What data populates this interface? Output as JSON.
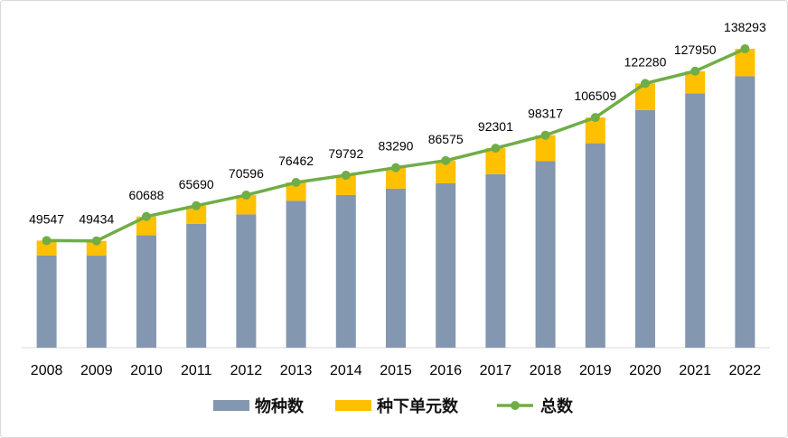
{
  "chart_data": {
    "type": "bar",
    "stacked": true,
    "categories": [
      "2008",
      "2009",
      "2010",
      "2011",
      "2012",
      "2013",
      "2014",
      "2015",
      "2016",
      "2017",
      "2018",
      "2019",
      "2020",
      "2021",
      "2022"
    ],
    "series": [
      {
        "name": "物种数",
        "kind": "bar",
        "color": "#8497B0",
        "values": [
          42700,
          42600,
          52000,
          57300,
          61700,
          68000,
          70700,
          73600,
          76100,
          80300,
          86300,
          94600,
          110000,
          117700,
          125600
        ]
      },
      {
        "name": "种下单元数",
        "kind": "bar",
        "color": "#FFC000",
        "values": [
          6847,
          6834,
          8688,
          8390,
          8896,
          8462,
          9092,
          9690,
          10475,
          12001,
          12017,
          11909,
          12280,
          10250,
          12693
        ]
      },
      {
        "name": "总数",
        "kind": "line",
        "color": "#70AD47",
        "values": [
          49547,
          49434,
          60688,
          65690,
          70596,
          76462,
          79792,
          83290,
          86575,
          92301,
          98317,
          106509,
          122280,
          127950,
          138293
        ]
      }
    ],
    "data_labels": [
      "49547",
      "49434",
      "60688",
      "65690",
      "70596",
      "76462",
      "79792",
      "83290",
      "86575",
      "92301",
      "98317",
      "106509",
      "122280",
      "127950",
      "138293"
    ],
    "ylim": [
      0,
      145000
    ],
    "grid": false,
    "legend_position": "bottom"
  }
}
